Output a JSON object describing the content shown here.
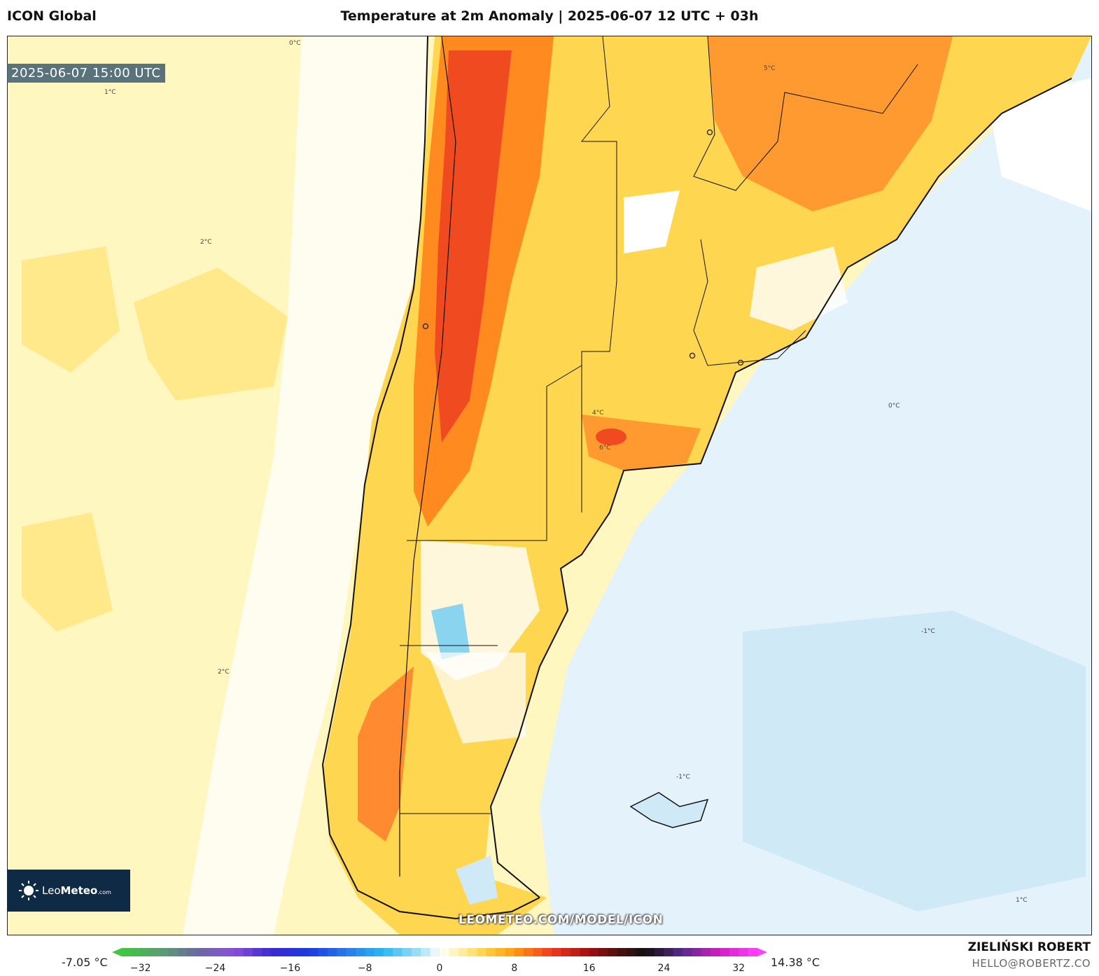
{
  "header": {
    "model": "ICON Global",
    "title": "Temperature at 2m Anomaly | 2025-06-07 12 UTC + 03h"
  },
  "map": {
    "valid_time": "2025-06-07 15:00 UTC",
    "watermark": "LEOMETEO.COM/MODEL/ICON",
    "contour_labels": [
      "0°C",
      "1°C",
      "2°C",
      "4°C",
      "5°C",
      "6°C",
      "-1°C"
    ]
  },
  "logo": {
    "brand_light": "Leo",
    "brand_bold": "Meteo",
    "brand_suffix": ".com"
  },
  "colorbar": {
    "min_label": "-7.05 °C",
    "max_label": "14.38 °C",
    "ticks": [
      "−32",
      "−24",
      "−16",
      "−8",
      "0",
      "8",
      "16",
      "24",
      "32"
    ],
    "range": [
      -34,
      34
    ],
    "stops": [
      {
        "v": -34,
        "c": "#3fc83f"
      },
      {
        "v": -30,
        "c": "#5aa070"
      },
      {
        "v": -26,
        "c": "#6a6aa0"
      },
      {
        "v": -22,
        "c": "#8a4fd8"
      },
      {
        "v": -18,
        "c": "#3a2ad0"
      },
      {
        "v": -14,
        "c": "#1a3ae0"
      },
      {
        "v": -10,
        "c": "#2a7ae8"
      },
      {
        "v": -6,
        "c": "#2ab8f0"
      },
      {
        "v": -2,
        "c": "#a8e0f4"
      },
      {
        "v": 0,
        "c": "#ffffff"
      },
      {
        "v": 2,
        "c": "#fff2b0"
      },
      {
        "v": 5,
        "c": "#ffd040"
      },
      {
        "v": 8,
        "c": "#ff9a10"
      },
      {
        "v": 12,
        "c": "#f03a20"
      },
      {
        "v": 16,
        "c": "#a01010"
      },
      {
        "v": 19,
        "c": "#501010"
      },
      {
        "v": 22,
        "c": "#111111"
      },
      {
        "v": 26,
        "c": "#5a2a8a"
      },
      {
        "v": 30,
        "c": "#d020c0"
      },
      {
        "v": 34,
        "c": "#ff40ff"
      }
    ]
  },
  "credits": {
    "author": "ZIELIŃSKI ROBERT",
    "email": "HELLO@ROBERTZ.CO"
  }
}
